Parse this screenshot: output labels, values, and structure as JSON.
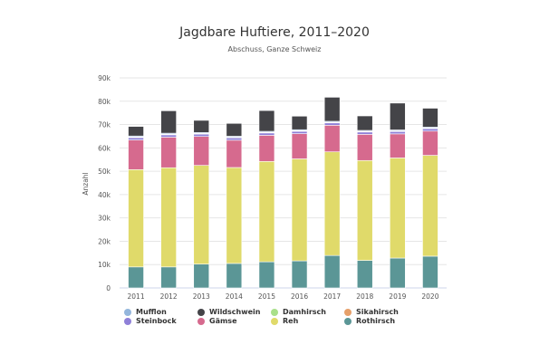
{
  "chart_data": {
    "type": "bar",
    "stacked": true,
    "title": "Jagdbare Huftiere, 2011–2020",
    "subtitle": "Abschuss, Ganze Schweiz",
    "ylabel": "Anzahl",
    "ylim": [
      0,
      90000
    ],
    "yticks": [
      0,
      10000,
      20000,
      30000,
      40000,
      50000,
      60000,
      70000,
      80000,
      90000
    ],
    "ytick_labels": [
      "0",
      "10k",
      "20k",
      "30k",
      "40k",
      "50k",
      "60k",
      "70k",
      "80k",
      "90k"
    ],
    "grid": true,
    "legend_position": "bottom-left",
    "categories": [
      "2011",
      "2012",
      "2013",
      "2014",
      "2015",
      "2016",
      "2017",
      "2018",
      "2019",
      "2020"
    ],
    "series": [
      {
        "name": "Rothirsch",
        "color": "#5b9696",
        "values": [
          9000,
          9000,
          10200,
          10500,
          11200,
          11600,
          13900,
          11800,
          12800,
          13600
        ]
      },
      {
        "name": "Reh",
        "color": "#e0da6a",
        "values": [
          41700,
          42500,
          42300,
          41100,
          43000,
          43700,
          44400,
          42800,
          42900,
          43200
        ]
      },
      {
        "name": "Gämse",
        "color": "#d66a8e",
        "values": [
          12700,
          13100,
          12400,
          11700,
          11200,
          10800,
          11400,
          11200,
          10300,
          10400
        ]
      },
      {
        "name": "Steinbock",
        "color": "#8f80d8",
        "values": [
          1000,
          1000,
          1000,
          1000,
          1000,
          1000,
          1000,
          1000,
          1000,
          1000
        ]
      },
      {
        "name": "Sikahirsch",
        "color": "#e6a06a",
        "values": [
          200,
          200,
          200,
          200,
          200,
          200,
          200,
          200,
          200,
          200
        ]
      },
      {
        "name": "Damhirsch",
        "color": "#a9e08a",
        "values": [
          100,
          100,
          100,
          100,
          100,
          100,
          100,
          100,
          100,
          100
        ]
      },
      {
        "name": "Mufflon",
        "color": "#94b6dc",
        "values": [
          400,
          400,
          400,
          400,
          400,
          400,
          400,
          400,
          400,
          400
        ]
      },
      {
        "name": "Wildschwein",
        "color": "#444448",
        "values": [
          4100,
          9600,
          5200,
          5500,
          8900,
          5800,
          10300,
          6200,
          11500,
          8100
        ]
      }
    ],
    "legend_order": [
      "Mufflon",
      "Wildschwein",
      "Damhirsch",
      "Sikahirsch",
      "Steinbock",
      "Gämse",
      "Reh",
      "Rothirsch"
    ]
  }
}
